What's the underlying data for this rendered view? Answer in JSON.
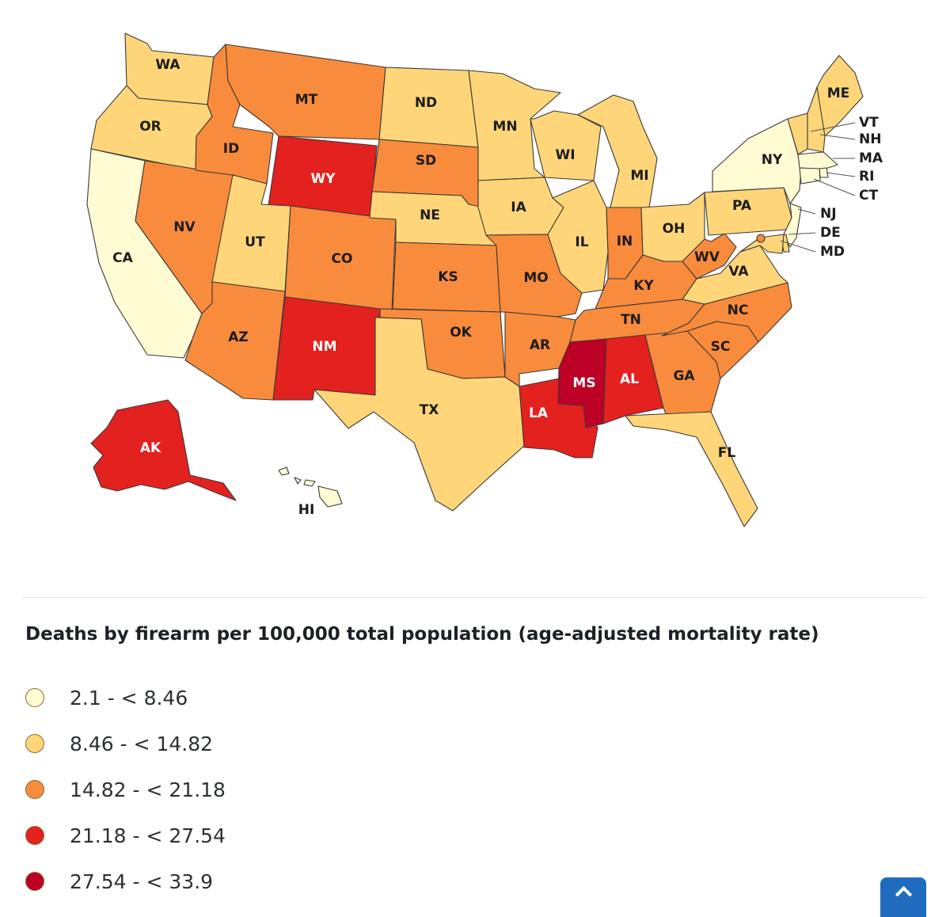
{
  "legend": {
    "title": "Deaths by firearm per 100,000 total population (age-adjusted mortality rate)",
    "bins": [
      {
        "label": "2.1 - < 8.46",
        "color": "#fffbd3"
      },
      {
        "label": "8.46 - < 14.82",
        "color": "#fed679"
      },
      {
        "label": "14.82 - < 21.18",
        "color": "#f98b3c"
      },
      {
        "label": "21.18 - < 27.54",
        "color": "#e3211f"
      },
      {
        "label": "27.54 - < 33.9",
        "color": "#bd0026"
      }
    ]
  },
  "states": [
    {
      "abbr": "WA",
      "bin": 1
    },
    {
      "abbr": "OR",
      "bin": 1
    },
    {
      "abbr": "CA",
      "bin": 0
    },
    {
      "abbr": "NV",
      "bin": 2
    },
    {
      "abbr": "ID",
      "bin": 2
    },
    {
      "abbr": "MT",
      "bin": 2
    },
    {
      "abbr": "WY",
      "bin": 3
    },
    {
      "abbr": "UT",
      "bin": 1
    },
    {
      "abbr": "AZ",
      "bin": 2
    },
    {
      "abbr": "CO",
      "bin": 2
    },
    {
      "abbr": "NM",
      "bin": 3
    },
    {
      "abbr": "ND",
      "bin": 1
    },
    {
      "abbr": "SD",
      "bin": 2
    },
    {
      "abbr": "NE",
      "bin": 1
    },
    {
      "abbr": "KS",
      "bin": 2
    },
    {
      "abbr": "OK",
      "bin": 2
    },
    {
      "abbr": "TX",
      "bin": 1
    },
    {
      "abbr": "MN",
      "bin": 1
    },
    {
      "abbr": "IA",
      "bin": 1
    },
    {
      "abbr": "MO",
      "bin": 2
    },
    {
      "abbr": "AR",
      "bin": 2
    },
    {
      "abbr": "LA",
      "bin": 3
    },
    {
      "abbr": "WI",
      "bin": 1
    },
    {
      "abbr": "IL",
      "bin": 1
    },
    {
      "abbr": "MI",
      "bin": 1
    },
    {
      "abbr": "IN",
      "bin": 2
    },
    {
      "abbr": "OH",
      "bin": 1
    },
    {
      "abbr": "KY",
      "bin": 2
    },
    {
      "abbr": "TN",
      "bin": 2
    },
    {
      "abbr": "MS",
      "bin": 4
    },
    {
      "abbr": "AL",
      "bin": 3
    },
    {
      "abbr": "GA",
      "bin": 2
    },
    {
      "abbr": "FL",
      "bin": 1
    },
    {
      "abbr": "SC",
      "bin": 2
    },
    {
      "abbr": "NC",
      "bin": 2
    },
    {
      "abbr": "VA",
      "bin": 1
    },
    {
      "abbr": "WV",
      "bin": 2
    },
    {
      "abbr": "PA",
      "bin": 1
    },
    {
      "abbr": "NY",
      "bin": 0
    },
    {
      "abbr": "ME",
      "bin": 1
    },
    {
      "abbr": "VT",
      "bin": 1
    },
    {
      "abbr": "NH",
      "bin": 1
    },
    {
      "abbr": "MA",
      "bin": 0
    },
    {
      "abbr": "RI",
      "bin": 0
    },
    {
      "abbr": "CT",
      "bin": 0
    },
    {
      "abbr": "NJ",
      "bin": 0
    },
    {
      "abbr": "DE",
      "bin": 1
    },
    {
      "abbr": "MD",
      "bin": 1
    },
    {
      "abbr": "DC",
      "bin": 2
    },
    {
      "abbr": "AK",
      "bin": 3
    },
    {
      "abbr": "HI",
      "bin": 0
    }
  ]
}
